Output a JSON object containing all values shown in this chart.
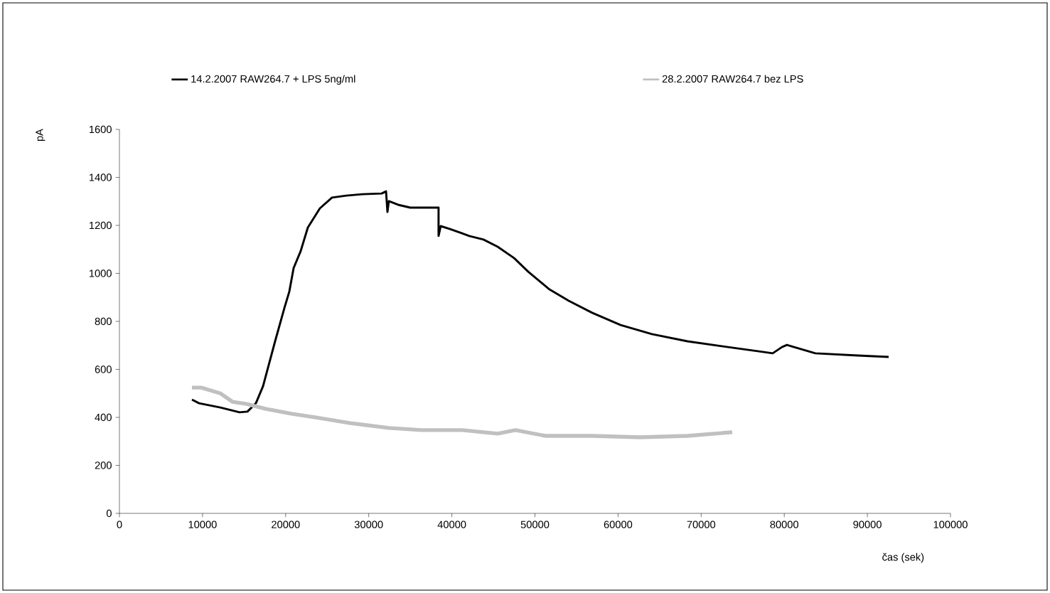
{
  "chart_data": {
    "type": "line",
    "xlabel": "čas (sek)",
    "ylabel": "pA",
    "legend": "top",
    "xlim": [
      0,
      100000
    ],
    "xticks": [
      0,
      10000,
      20000,
      30000,
      40000,
      50000,
      60000,
      70000,
      80000,
      90000,
      100000
    ],
    "ylim": [
      0,
      1600
    ],
    "yticks": [
      0,
      200,
      400,
      600,
      800,
      1000,
      1200,
      1400,
      1600
    ],
    "series": [
      {
        "name": "14.2.2007 RAW264.7 + LPS 5ng/ml",
        "color": "#000000",
        "x": [
          8725,
          9580,
          12150,
          14460,
          15400,
          16420,
          17280,
          18730,
          19850,
          20440,
          20960,
          21810,
          22670,
          24120,
          25580,
          27290,
          29250,
          31560,
          32080,
          32250,
          32420,
          33530,
          34990,
          38400,
          38400,
          38660,
          39780,
          41230,
          42090,
          43800,
          45510,
          47480,
          49190,
          51750,
          54060,
          56880,
          60310,
          64070,
          68350,
          72620,
          77410,
          78610,
          79720,
          80320,
          81180,
          83740,
          88870,
          92560
        ],
        "values": [
          474,
          459,
          441,
          421,
          424,
          459,
          530,
          717,
          856,
          924,
          1022,
          1093,
          1191,
          1271,
          1316,
          1324,
          1330,
          1333,
          1342,
          1256,
          1301,
          1286,
          1274,
          1274,
          1156,
          1197,
          1185,
          1167,
          1156,
          1141,
          1111,
          1064,
          1007,
          933,
          886,
          836,
          785,
          747,
          717,
          696,
          673,
          667,
          693,
          702,
          693,
          667,
          658,
          652
        ]
      },
      {
        "name": "28.2.2007 RAW264.7 bez LPS",
        "color": "#c0c0c0",
        "x": [
          8725,
          9840,
          12150,
          13600,
          15310,
          17540,
          20700,
          23520,
          27800,
          32420,
          36350,
          41230,
          45510,
          47650,
          51240,
          56880,
          62610,
          68350,
          73740
        ],
        "values": [
          524,
          524,
          500,
          465,
          456,
          436,
          415,
          400,
          376,
          356,
          347,
          347,
          332,
          347,
          323,
          323,
          317,
          323,
          338
        ]
      }
    ]
  }
}
